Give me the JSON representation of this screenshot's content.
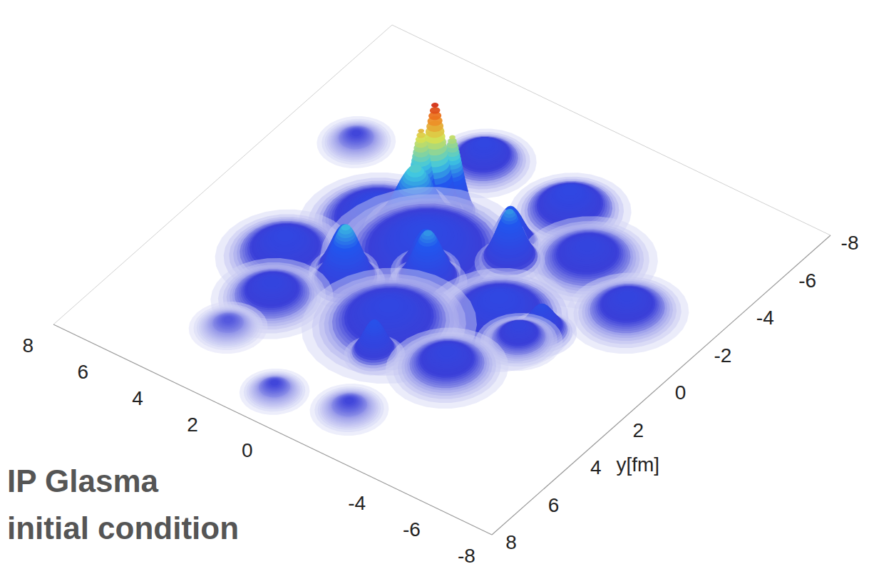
{
  "chart_data": {
    "type": "surface",
    "annotation": [
      "IP Glasma",
      "initial condition"
    ],
    "y_label": "y[fm]",
    "xlim": [
      -8,
      8
    ],
    "ylim": [
      -8,
      8
    ],
    "xticks": [
      -8,
      -6,
      -4,
      0,
      2,
      4,
      6,
      8
    ],
    "yticks": [
      -8,
      -6,
      -4,
      -2,
      0,
      2,
      4,
      6,
      8
    ],
    "zlim": [
      0,
      1
    ],
    "peaks": {
      "x": [
        1.74,
        2.0,
        1.4,
        1.9,
        2.13,
        2.5,
        0.19,
        0.6,
        -1.17,
        -0.8,
        -0.45,
        -3.84,
        -3.5,
        5.7,
        3.77,
        0.96,
        -1.29,
        4.33,
        -5.3,
        2.1,
        -1.27,
        -2.45,
        1.0,
        3.0,
        0.0,
        3.5,
        -2.5,
        -3.0
      ],
      "y": [
        -1.92,
        -1.6,
        -2.3,
        -1.2,
        1.79,
        1.4,
        0.42,
        0.0,
        -1.68,
        -2.2,
        3.78,
        0.26,
        0.9,
        -3.33,
        5.22,
        6.67,
        6.05,
        1.8,
        -1.9,
        -4.7,
        -4.4,
        0.48,
        -0.5,
        -0.8,
        2.5,
        3.5,
        3.0,
        -3.0
      ],
      "z": [
        1.0,
        0.8,
        0.7,
        0.55,
        0.5,
        0.4,
        0.45,
        0.35,
        0.45,
        0.35,
        0.3,
        0.25,
        0.15,
        0.08,
        0.07,
        0.08,
        0.08,
        0.18,
        0.15,
        0.18,
        0.2,
        0.2,
        0.22,
        0.2,
        0.18,
        0.15,
        0.15,
        0.15
      ],
      "width": [
        0.35,
        0.3,
        0.3,
        0.6,
        0.45,
        0.4,
        0.45,
        0.4,
        0.4,
        0.4,
        0.35,
        0.4,
        0.5,
        0.45,
        0.45,
        0.4,
        0.45,
        0.8,
        0.7,
        0.6,
        0.7,
        0.9,
        1.2,
        0.9,
        1.0,
        0.7,
        0.7,
        0.8
      ]
    }
  }
}
